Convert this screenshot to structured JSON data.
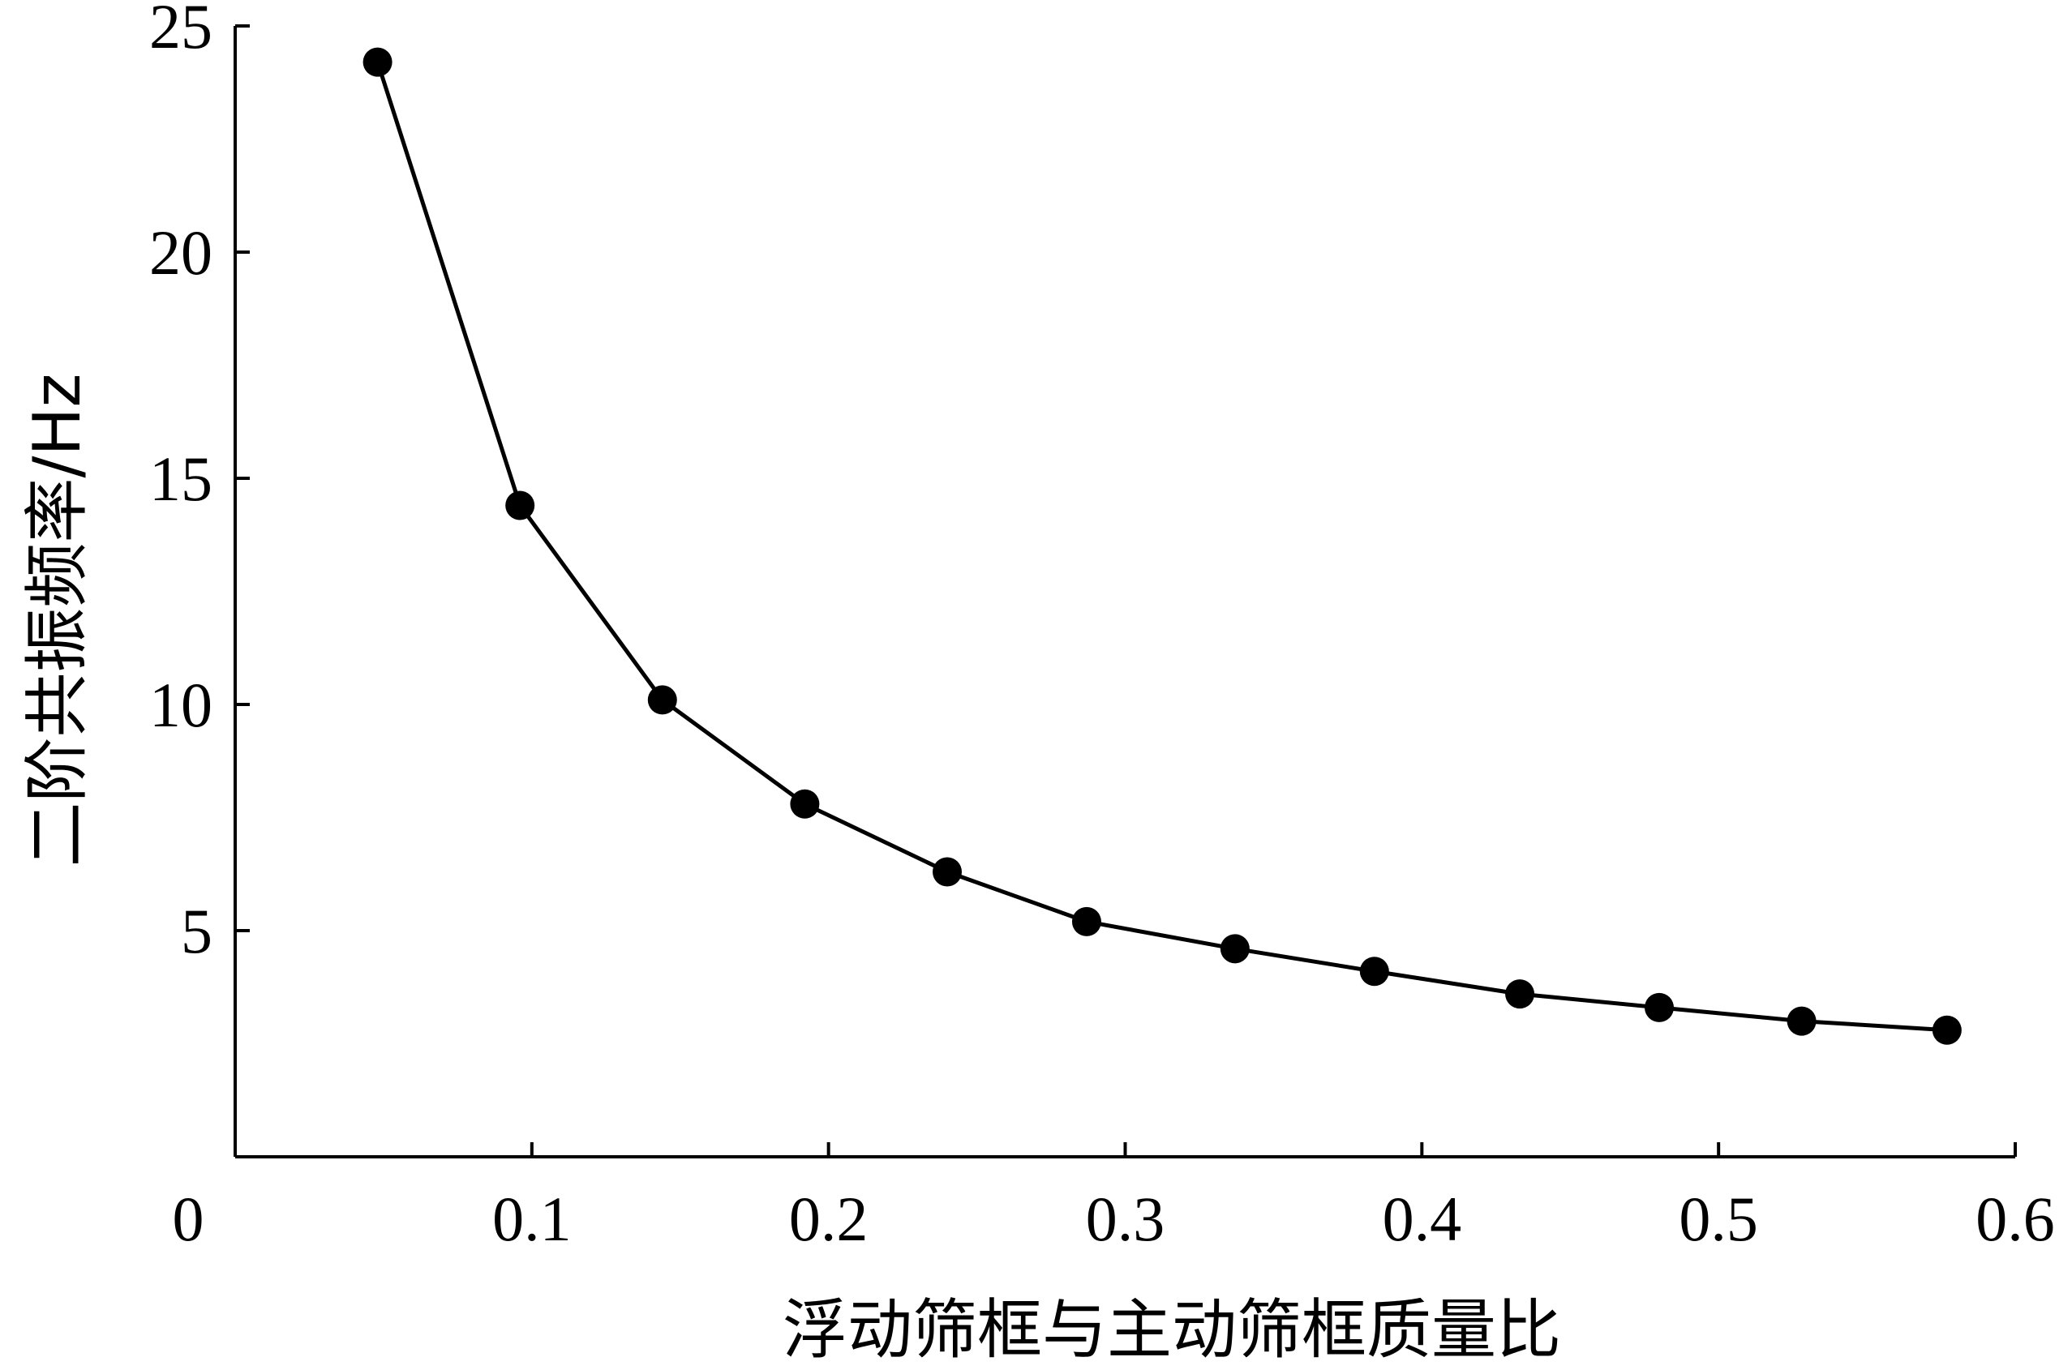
{
  "chart_data": {
    "type": "line",
    "title": "",
    "xlabel": "浮动筛框与主动筛框质量比",
    "ylabel": "二阶共振频率/Hz",
    "xlim": [
      0,
      0.6
    ],
    "ylim": [
      0,
      25
    ],
    "xticks": [
      0,
      0.1,
      0.2,
      0.3,
      0.4,
      0.5,
      0.6
    ],
    "xtick_labels": [
      "0",
      "0.1",
      "0.2",
      "0.3",
      "0.4",
      "0.5",
      "0.6"
    ],
    "yticks": [
      5,
      10,
      15,
      20,
      25
    ],
    "ytick_labels": [
      "5",
      "10",
      "15",
      "20",
      "25"
    ],
    "grid": false,
    "series": [
      {
        "color": "#000000",
        "marker": "circle",
        "x": [
          0.048,
          0.096,
          0.144,
          0.192,
          0.24,
          0.287,
          0.337,
          0.384,
          0.433,
          0.48,
          0.528,
          0.577
        ],
        "y": [
          24.2,
          14.4,
          10.1,
          7.8,
          6.3,
          5.2,
          4.6,
          4.1,
          3.6,
          3.3,
          3.0,
          2.8
        ]
      }
    ]
  }
}
